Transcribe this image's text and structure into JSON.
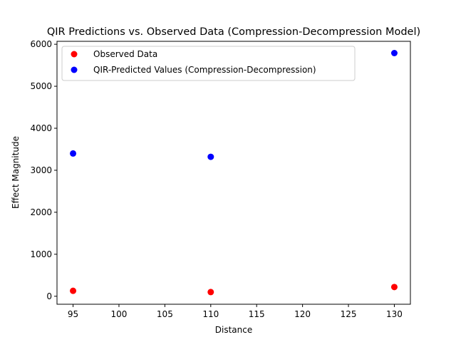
{
  "chart_data": {
    "type": "scatter",
    "title": "QIR Predictions vs. Observed Data (Compression-Decompression Model)",
    "xlabel": "Distance",
    "ylabel": "Effect Magnitude",
    "xlim": [
      93.25,
      131.75
    ],
    "ylim": [
      -190,
      6070
    ],
    "xticks": [
      95,
      100,
      105,
      110,
      115,
      120,
      125,
      130
    ],
    "yticks": [
      0,
      1000,
      2000,
      3000,
      4000,
      5000,
      6000
    ],
    "grid": false,
    "legend_position": "top-left",
    "series": [
      {
        "name": "Observed Data",
        "color": "#ff0000",
        "x": [
          95,
          110,
          130
        ],
        "y": [
          130,
          100,
          220
        ]
      },
      {
        "name": "QIR-Predicted Values (Compression-Decompression)",
        "color": "#0000ff",
        "x": [
          95,
          110,
          130
        ],
        "y": [
          3400,
          3320,
          5790
        ]
      }
    ]
  }
}
